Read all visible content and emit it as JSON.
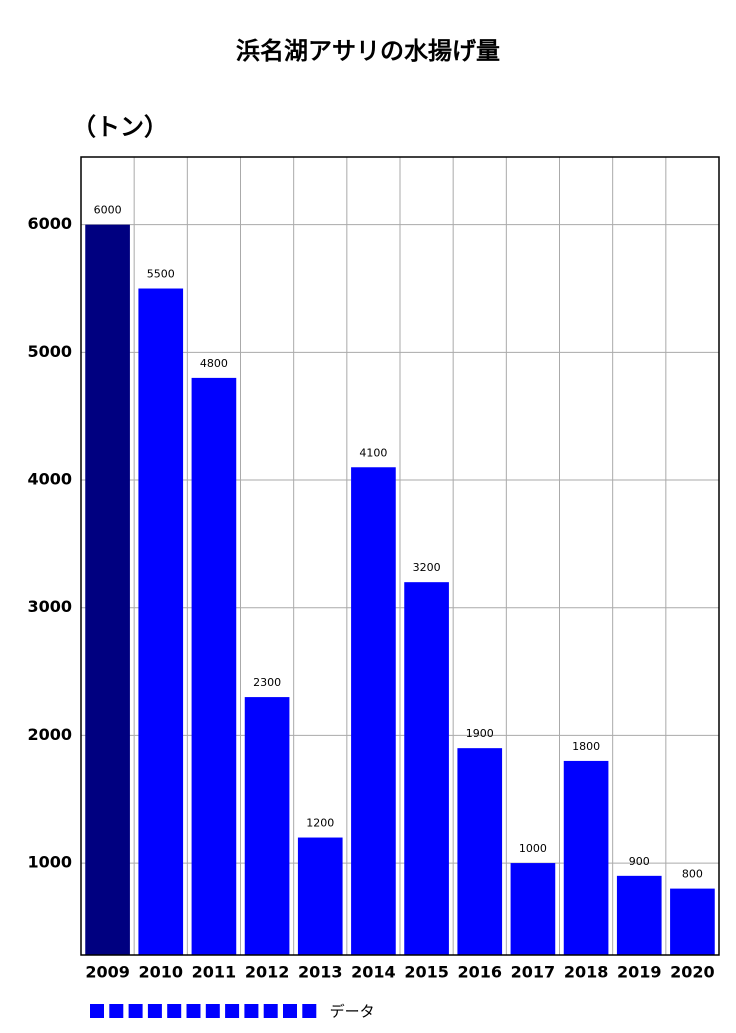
{
  "chart_data": {
    "type": "bar",
    "title": "浜名湖アサリの水揚げ量",
    "y_label": "（トン）",
    "categories": [
      "2009",
      "2010",
      "2011",
      "2012",
      "2013",
      "2014",
      "2015",
      "2016",
      "2017",
      "2018",
      "2019",
      "2020"
    ],
    "series": [
      {
        "name": "データ",
        "color": "#0000ff",
        "values": [
          6000,
          5500,
          4800,
          2300,
          1200,
          4100,
          3200,
          1900,
          1000,
          1800,
          900,
          800
        ],
        "colors": [
          "#000080",
          "#0000ff",
          "#0000ff",
          "#0000ff",
          "#0000ff",
          "#0000ff",
          "#0000ff",
          "#0000ff",
          "#0000ff",
          "#0000ff",
          "#0000ff",
          "#0000ff"
        ]
      }
    ],
    "ylim": [
      280,
      6530
    ],
    "yticks": [
      1000,
      2000,
      3000,
      4000,
      5000,
      6000
    ],
    "grid": true
  }
}
